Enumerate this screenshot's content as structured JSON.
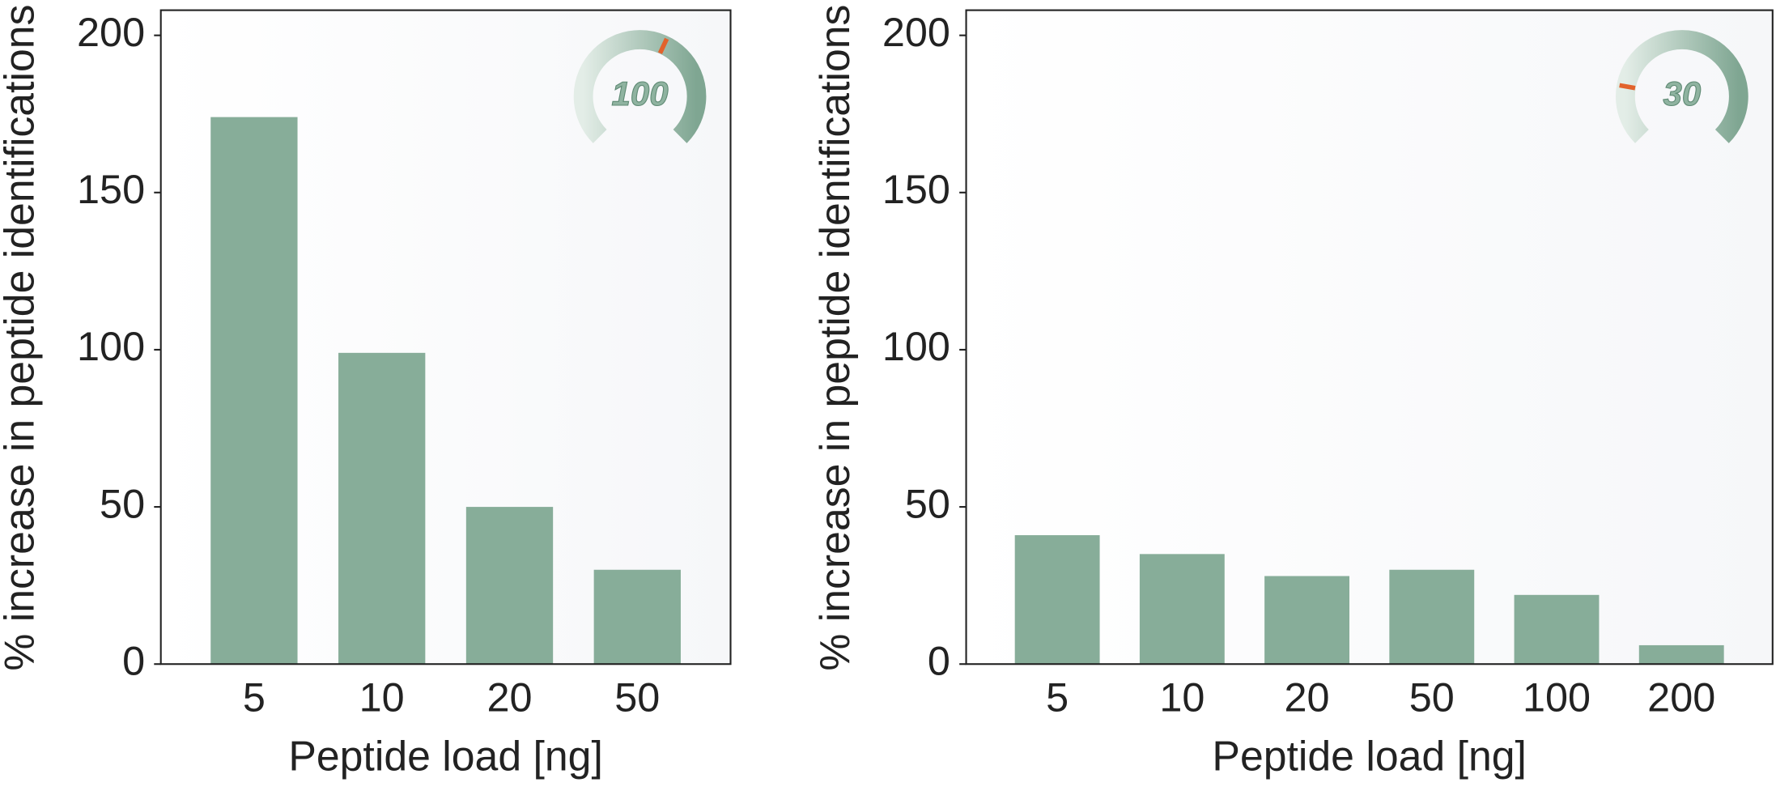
{
  "chart_data": [
    {
      "type": "bar",
      "badge": "100",
      "ylabel": "% increase in peptide identifications",
      "xlabel": "Peptide load [ng]",
      "categories": [
        "5",
        "10",
        "20",
        "50"
      ],
      "values": [
        174,
        99,
        50,
        30
      ],
      "color": "#87ad99",
      "ylim": [
        0,
        208
      ],
      "yticks": [
        0,
        50,
        100,
        150,
        200
      ]
    },
    {
      "type": "bar",
      "badge": "30",
      "ylabel": "% increase in peptide identifications",
      "xlabel": "Peptide load [ng]",
      "categories": [
        "5",
        "10",
        "20",
        "50",
        "100",
        "200"
      ],
      "values": [
        41,
        35,
        28,
        30,
        22,
        6
      ],
      "color": "#87ad99",
      "ylim": [
        0,
        208
      ],
      "yticks": [
        0,
        50,
        100,
        150,
        200
      ]
    }
  ]
}
